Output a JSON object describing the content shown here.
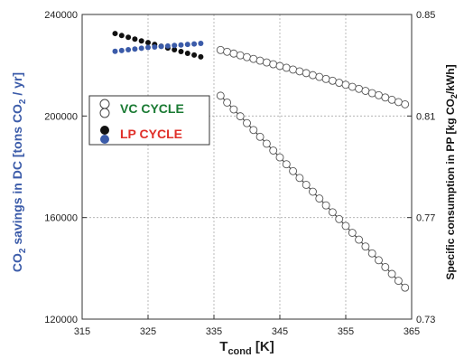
{
  "chart_data": {
    "type": "scatter",
    "xlabel": {
      "main": "T",
      "sub": "cond",
      "rest": " [K]"
    },
    "ylabel_left": {
      "pre": "CO",
      "sub": "2",
      "post": " savings in DC [tons CO",
      "sub2": "2",
      "post2": " / yr]",
      "color": "#3b5ba9"
    },
    "ylabel_right": {
      "pre": "Specific consumption in PP [kg CO",
      "sub": "2",
      "post": "/kWh]"
    },
    "xlim": [
      315,
      365
    ],
    "xticks": [
      "315",
      "325",
      "335",
      "345",
      "355",
      "365"
    ],
    "xtick_values": [
      315,
      325,
      335,
      345,
      355,
      365
    ],
    "ylim_left": [
      120000,
      240000
    ],
    "yticks_left": [
      "120000",
      "160000",
      "200000",
      "240000"
    ],
    "ytick_left_values": [
      120000,
      160000,
      200000,
      240000
    ],
    "ylim_right": [
      0.73,
      0.85
    ],
    "yticks_right": [
      "0.73",
      "0.77",
      "0.81",
      "0.85"
    ],
    "ytick_right_values": [
      0.73,
      0.77,
      0.81,
      0.85
    ],
    "grid": true,
    "legend": {
      "placement": "upper-left",
      "entries": [
        {
          "name": "VC CYCLE",
          "color": "#1a7a33"
        },
        {
          "name": "LP CYCLE",
          "color": "#e0302a"
        }
      ]
    },
    "series": [
      {
        "legend_index": 0,
        "axis": "left",
        "marker": "open-circle",
        "line": "#4466b0",
        "x": [
          336,
          337,
          338,
          339,
          340,
          341,
          342,
          343,
          344,
          345,
          346,
          347,
          348,
          349,
          350,
          351,
          352,
          353,
          354,
          355,
          356,
          357,
          358,
          359,
          360,
          361,
          362,
          363,
          364
        ],
        "y": [
          226000,
          225300,
          224600,
          223900,
          223200,
          222500,
          221800,
          221100,
          220400,
          219700,
          219000,
          218300,
          217600,
          216900,
          216100,
          215400,
          214600,
          213900,
          213100,
          212300,
          211500,
          210700,
          209900,
          209000,
          208200,
          207300,
          206400,
          205500,
          204600
        ]
      },
      {
        "legend_index": 0,
        "axis": "right",
        "marker": "open-circle",
        "line": "#222222",
        "x": [
          336,
          337,
          338,
          339,
          340,
          341,
          342,
          343,
          344,
          345,
          346,
          347,
          348,
          349,
          350,
          351,
          352,
          353,
          354,
          355,
          356,
          357,
          358,
          359,
          360,
          361,
          362,
          363,
          364
        ],
        "y": [
          0.818,
          0.8153,
          0.8126,
          0.8099,
          0.8072,
          0.8045,
          0.8018,
          0.7991,
          0.7964,
          0.7937,
          0.791,
          0.7883,
          0.7856,
          0.7829,
          0.7802,
          0.7775,
          0.7748,
          0.7721,
          0.7694,
          0.7667,
          0.764,
          0.7613,
          0.7586,
          0.7559,
          0.7532,
          0.7505,
          0.7478,
          0.7451,
          0.7424
        ]
      },
      {
        "legend_index": 1,
        "axis": "left",
        "marker": "filled-circle",
        "color": "#111111",
        "x": [
          320,
          321,
          322,
          323,
          324,
          325,
          326,
          327,
          328,
          329,
          330,
          331,
          332,
          333
        ],
        "y": [
          232500,
          231700,
          231000,
          230300,
          229600,
          228900,
          228200,
          227500,
          226800,
          226100,
          225400,
          224700,
          224000,
          223300
        ]
      },
      {
        "legend_index": 1,
        "axis": "left",
        "marker": "filled-circle",
        "color": "#3b5ba9",
        "x": [
          320,
          321,
          322,
          323,
          324,
          325,
          326,
          327,
          328,
          329,
          330,
          331,
          332,
          333
        ],
        "y": [
          225500,
          225800,
          226100,
          226400,
          226700,
          227000,
          227200,
          227400,
          227600,
          227800,
          228000,
          228200,
          228400,
          228600
        ]
      }
    ]
  }
}
